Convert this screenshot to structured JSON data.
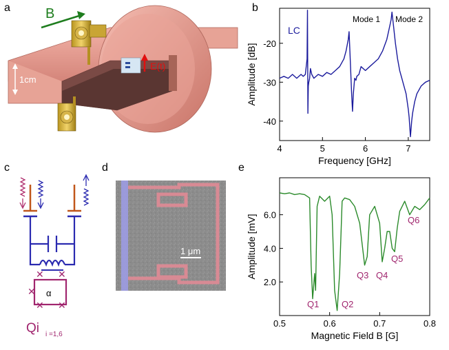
{
  "panels": {
    "a": {
      "letter": "a",
      "field_label": "B",
      "efield_label": "E(t)",
      "scale_label": "1cm"
    },
    "b": {
      "letter": "b",
      "chart_data": {
        "type": "line",
        "xlabel": "Frequency [GHz]",
        "ylabel": "Amplitude [dB]",
        "xlim": [
          4,
          7.5
        ],
        "ylim": [
          -45,
          -11
        ],
        "xticks": [
          4,
          5,
          6,
          7
        ],
        "yticks": [
          -40,
          -30,
          -20
        ],
        "annotations": [
          "LC",
          "Mode 1",
          "Mode 2"
        ],
        "line_color": "#1a1a9c",
        "series": [
          {
            "x": [
              4.0,
              4.1,
              4.2,
              4.3,
              4.4,
              4.5,
              4.55,
              4.6,
              4.64,
              4.65,
              4.66,
              4.67,
              4.68,
              4.7,
              4.72,
              4.75,
              4.8,
              4.9,
              5.0,
              5.1,
              5.2,
              5.3,
              5.4,
              5.5,
              5.55,
              5.6,
              5.62,
              5.65,
              5.68,
              5.7,
              5.72,
              5.75,
              5.78,
              5.8,
              5.85,
              5.9,
              6.0,
              6.1,
              6.2,
              6.3,
              6.4,
              6.5,
              6.55,
              6.6,
              6.62,
              6.65,
              6.7,
              6.75,
              6.8,
              6.85,
              6.9,
              6.95,
              7.0,
              7.02,
              7.05,
              7.08,
              7.1,
              7.15,
              7.2,
              7.3,
              7.4,
              7.5
            ],
            "y": [
              -29,
              -28.5,
              -29,
              -28,
              -29,
              -28,
              -28.5,
              -28,
              -24,
              -11.5,
              -38,
              -31,
              -30,
              -29,
              -26.5,
              -28,
              -29,
              -28,
              -28.5,
              -27.5,
              -28,
              -27,
              -26,
              -24,
              -22,
              -19,
              -17,
              -25,
              -33,
              -37.5,
              -33,
              -29,
              -29.5,
              -28.5,
              -28,
              -26,
              -27,
              -26,
              -25,
              -24,
              -22,
              -19,
              -16.5,
              -14,
              -12,
              -15,
              -20,
              -24,
              -27,
              -29,
              -31,
              -33,
              -37,
              -39,
              -44,
              -40,
              -38,
              -35,
              -33,
              -31,
              -30,
              -29.5
            ]
          }
        ]
      }
    },
    "c": {
      "letter": "c",
      "qubit_label": "Qi",
      "subscript": "i =1,6",
      "junction_label": "α"
    },
    "d": {
      "letter": "d",
      "scale_label": "1 μm"
    },
    "e": {
      "letter": "e",
      "chart_data": {
        "type": "line",
        "xlabel": "Magnetic Field B [G]",
        "ylabel": "Amplitude [mV]",
        "xlim": [
          0.5,
          0.8
        ],
        "ylim": [
          0,
          8.2
        ],
        "xticks": [
          0.5,
          0.6,
          0.7,
          0.8
        ],
        "ytick_labels": [
          "2.0",
          "4.0",
          "6.0"
        ],
        "yticks": [
          2.0,
          4.0,
          6.0
        ],
        "annotations": [
          "Q1",
          "Q2",
          "Q3",
          "Q4",
          "Q5",
          "Q6"
        ],
        "line_color": "#2a8a2a",
        "series": [
          {
            "x": [
              0.5,
              0.51,
              0.52,
              0.53,
              0.54,
              0.55,
              0.56,
              0.563,
              0.566,
              0.57,
              0.572,
              0.575,
              0.58,
              0.59,
              0.6,
              0.605,
              0.61,
              0.615,
              0.62,
              0.625,
              0.63,
              0.64,
              0.65,
              0.66,
              0.67,
              0.675,
              0.68,
              0.69,
              0.7,
              0.705,
              0.71,
              0.715,
              0.72,
              0.725,
              0.73,
              0.735,
              0.74,
              0.75,
              0.76,
              0.77,
              0.78,
              0.79,
              0.8
            ],
            "y": [
              7.3,
              7.25,
              7.3,
              7.2,
              7.25,
              7.2,
              7.0,
              3.0,
              1.0,
              2.5,
              1.5,
              6.5,
              7.1,
              6.8,
              7.1,
              6.0,
              1.5,
              0.3,
              2.5,
              6.8,
              7.0,
              6.9,
              6.5,
              5.5,
              3.0,
              3.5,
              6.0,
              6.5,
              5.5,
              3.2,
              4.0,
              5.0,
              5.0,
              4.0,
              3.8,
              5.2,
              6.2,
              6.8,
              6.0,
              6.5,
              6.3,
              6.6,
              7.0
            ]
          }
        ]
      }
    }
  }
}
